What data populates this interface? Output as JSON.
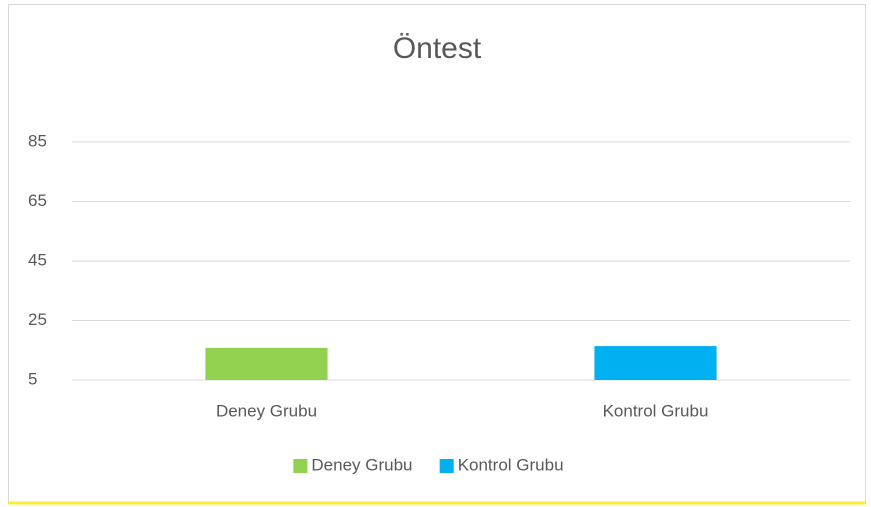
{
  "chart_data": {
    "type": "bar",
    "title": "Öntest",
    "categories": [
      "Deney Grubu",
      "Kontrol Grubu"
    ],
    "series": [
      {
        "name": "Deney Grubu",
        "color": "#92d050",
        "values": [
          15.8,
          null
        ]
      },
      {
        "name": "Kontrol Grubu",
        "color": "#00b0f0",
        "values": [
          null,
          16.4
        ]
      }
    ],
    "ylim": [
      5,
      85
    ],
    "yticks": [
      5,
      25,
      45,
      65,
      85
    ],
    "grid": true,
    "legend": "bottom"
  }
}
